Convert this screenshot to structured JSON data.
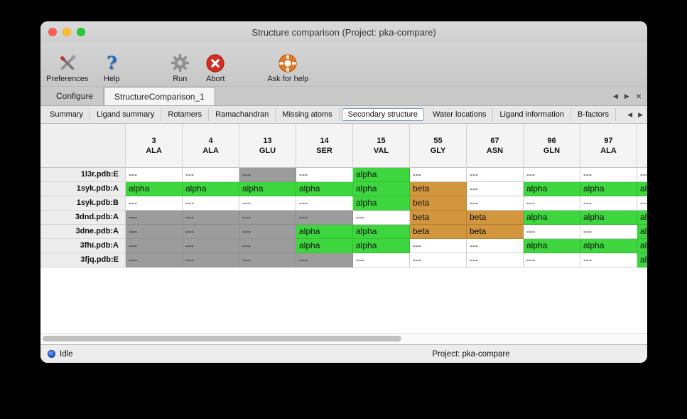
{
  "window": {
    "title": "Structure comparison (Project: pka-compare)"
  },
  "toolbar": {
    "items": [
      {
        "label": "Preferences",
        "icon": "tools-icon"
      },
      {
        "label": "Help",
        "icon": "help-question-icon"
      },
      {
        "label": "Run",
        "icon": "gear-icon"
      },
      {
        "label": "Abort",
        "icon": "abort-x-icon"
      },
      {
        "label": "Ask for help",
        "icon": "lifebuoy-icon"
      }
    ]
  },
  "tabs": {
    "items": [
      {
        "label": "Configure",
        "active": false
      },
      {
        "label": "StructureComparison_1",
        "active": true
      }
    ]
  },
  "subtabs": {
    "items": [
      "Summary",
      "Ligand summary",
      "Rotamers",
      "Ramachandran",
      "Missing atoms",
      "Secondary structure",
      "Water locations",
      "Ligand information",
      "B-factors"
    ],
    "selected": "Secondary structure"
  },
  "table": {
    "columns": [
      {
        "number": "3",
        "residue": "ALA"
      },
      {
        "number": "4",
        "residue": "ALA"
      },
      {
        "number": "13",
        "residue": "GLU"
      },
      {
        "number": "14",
        "residue": "SER"
      },
      {
        "number": "15",
        "residue": "VAL"
      },
      {
        "number": "55",
        "residue": "GLY"
      },
      {
        "number": "67",
        "residue": "ASN"
      },
      {
        "number": "96",
        "residue": "GLN"
      },
      {
        "number": "97",
        "residue": "ALA"
      },
      {
        "number": "",
        "residue": ""
      }
    ],
    "cell_types": {
      "a": {
        "label": "alpha",
        "kind": "alpha"
      },
      "b": {
        "label": "beta",
        "kind": "beta"
      },
      "-": {
        "label": "---",
        "kind": "none"
      },
      "m": {
        "label": "---",
        "kind": "missing"
      }
    },
    "rows": [
      {
        "name": "1l3r.pdb:E",
        "cells": [
          "-",
          "-",
          "m",
          "-",
          "a",
          "-",
          "-",
          "-",
          "-",
          "-"
        ]
      },
      {
        "name": "1syk.pdb:A",
        "cells": [
          "a",
          "a",
          "a",
          "a",
          "a",
          "b",
          "-",
          "a",
          "a",
          "a"
        ]
      },
      {
        "name": "1syk.pdb:B",
        "cells": [
          "-",
          "-",
          "-",
          "-",
          "a",
          "b",
          "-",
          "-",
          "-",
          "-"
        ]
      },
      {
        "name": "3dnd.pdb:A",
        "cells": [
          "m",
          "m",
          "m",
          "m",
          "-",
          "b",
          "b",
          "a",
          "a",
          "a"
        ]
      },
      {
        "name": "3dne.pdb:A",
        "cells": [
          "m",
          "m",
          "m",
          "a",
          "a",
          "b",
          "b",
          "-",
          "-",
          "a"
        ]
      },
      {
        "name": "3fhi.pdb:A",
        "cells": [
          "m",
          "m",
          "m",
          "a",
          "a",
          "-",
          "-",
          "a",
          "a",
          "a"
        ]
      },
      {
        "name": "3fjq.pdb:E",
        "cells": [
          "m",
          "m",
          "m",
          "m",
          "-",
          "-",
          "-",
          "-",
          "-",
          "a"
        ]
      }
    ]
  },
  "statusbar": {
    "status": "Idle",
    "project": "Project: pka-compare"
  },
  "colors": {
    "alpha": "#3ed63e",
    "beta": "#d2973e",
    "missing": "#9c9c9c",
    "close": "#ff5f57",
    "minimize": "#febc2e",
    "zoom": "#28c840",
    "status_blue": "#1a5bd0"
  }
}
